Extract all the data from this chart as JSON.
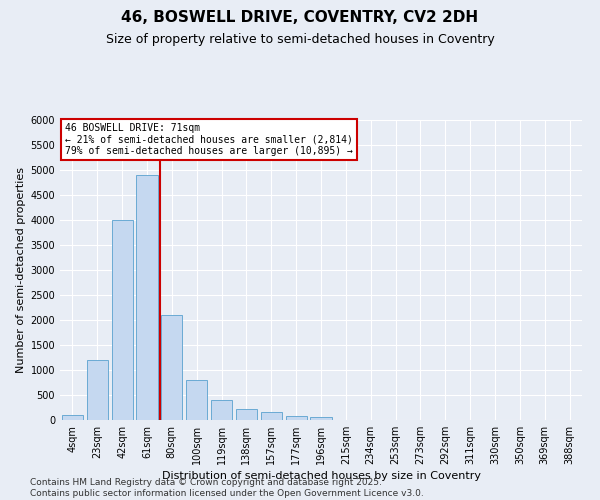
{
  "title1": "46, BOSWELL DRIVE, COVENTRY, CV2 2DH",
  "title2": "Size of property relative to semi-detached houses in Coventry",
  "xlabel": "Distribution of semi-detached houses by size in Coventry",
  "ylabel": "Number of semi-detached properties",
  "categories": [
    "4sqm",
    "23sqm",
    "42sqm",
    "61sqm",
    "80sqm",
    "100sqm",
    "119sqm",
    "138sqm",
    "157sqm",
    "177sqm",
    "196sqm",
    "215sqm",
    "234sqm",
    "253sqm",
    "273sqm",
    "292sqm",
    "311sqm",
    "330sqm",
    "350sqm",
    "369sqm",
    "388sqm"
  ],
  "values": [
    100,
    1200,
    4000,
    4900,
    2100,
    800,
    400,
    220,
    160,
    80,
    60,
    10,
    5,
    2,
    1,
    0,
    0,
    0,
    0,
    0,
    0
  ],
  "bar_color": "#c5d8f0",
  "bar_edge_color": "#6aaad4",
  "vline_color": "#cc0000",
  "annotation_text": "46 BOSWELL DRIVE: 71sqm\n← 21% of semi-detached houses are smaller (2,814)\n79% of semi-detached houses are larger (10,895) →",
  "annotation_box_color": "#ffffff",
  "annotation_box_edge": "#cc0000",
  "ylim": [
    0,
    6000
  ],
  "yticks": [
    0,
    500,
    1000,
    1500,
    2000,
    2500,
    3000,
    3500,
    4000,
    4500,
    5000,
    5500,
    6000
  ],
  "background_color": "#e8edf5",
  "footer": "Contains HM Land Registry data © Crown copyright and database right 2025.\nContains public sector information licensed under the Open Government Licence v3.0.",
  "title_fontsize": 11,
  "subtitle_fontsize": 9,
  "axis_label_fontsize": 8,
  "tick_fontsize": 7,
  "footer_fontsize": 6.5
}
